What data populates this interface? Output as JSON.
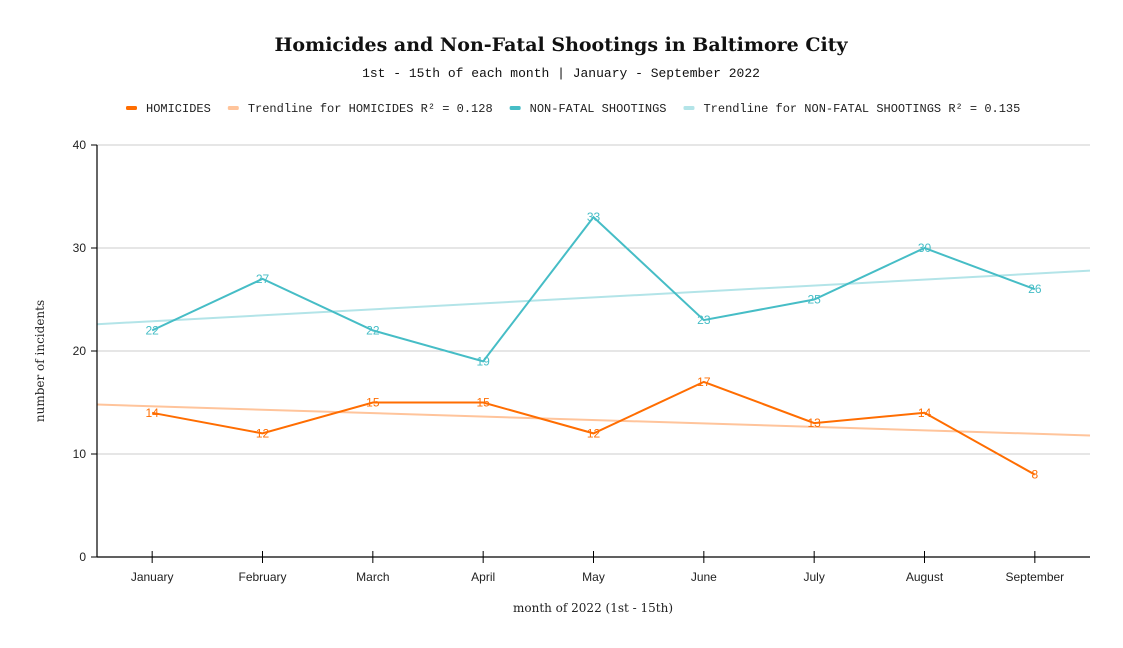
{
  "chart_data": {
    "type": "line",
    "title": "Homicides and Non-Fatal Shootings in Baltimore City",
    "subtitle": "1st - 15th of each month | January - September 2022",
    "xlabel": "month of 2022 (1st - 15th)",
    "ylabel": "number of incidents",
    "ylim": [
      0,
      40
    ],
    "yticks": [
      "0",
      "10",
      "20",
      "30",
      "40"
    ],
    "grid": true,
    "legend_position": "top",
    "categories": [
      "January",
      "February",
      "March",
      "April",
      "May",
      "June",
      "July",
      "August",
      "September"
    ],
    "series": [
      {
        "name": "HOMICIDES",
        "color": "#ff6d01",
        "values": [
          14,
          12,
          15,
          15,
          12,
          17,
          13,
          14,
          8
        ]
      },
      {
        "name": "NON-FATAL SHOOTINGS",
        "color": "#46bdc6",
        "values": [
          22,
          27,
          22,
          19,
          33,
          23,
          25,
          30,
          26
        ]
      }
    ],
    "trendlines": [
      {
        "name": "Trendline for HOMICIDES R² = 0.128",
        "color": "#ffc49b",
        "start": 14.8,
        "end": 11.8
      },
      {
        "name": "Trendline for NON-FATAL SHOOTINGS R² = 0.135",
        "color": "#b3e4e8",
        "start": 22.6,
        "end": 27.8
      }
    ]
  }
}
